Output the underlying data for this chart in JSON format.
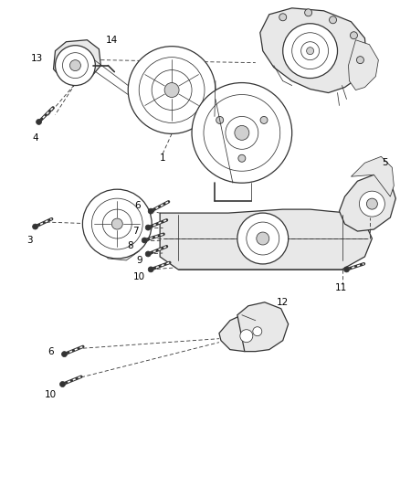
{
  "bg_color": "#ffffff",
  "line_color": "#333333",
  "text_color": "#000000",
  "fig_width": 4.38,
  "fig_height": 5.33,
  "dpi": 100,
  "lw_main": 0.9,
  "lw_thin": 0.55,
  "lw_thick": 1.2,
  "gray_fill": "#d0d0d0",
  "light_fill": "#e8e8e8",
  "white": "#ffffff"
}
